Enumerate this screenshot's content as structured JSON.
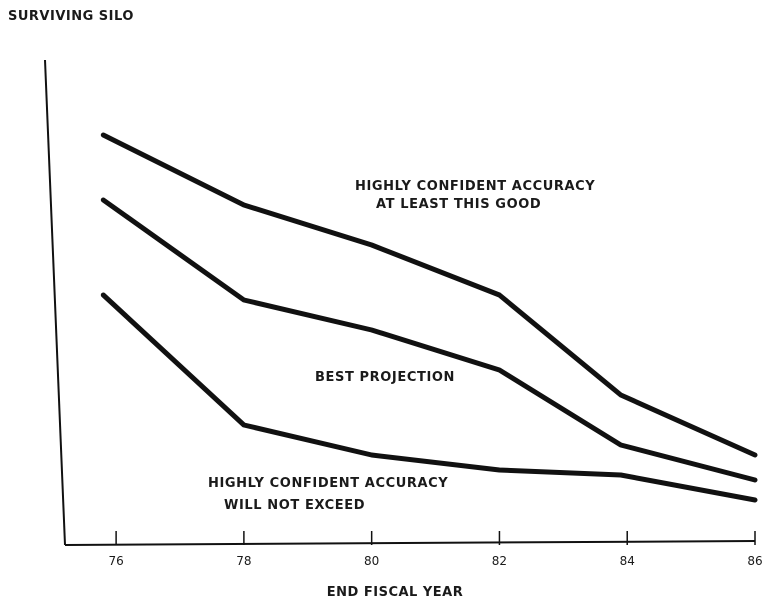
{
  "chart_data": {
    "type": "line",
    "ylabel": "SURVIVING SILO",
    "xlabel": "END FISCAL YEAR",
    "x": [
      76,
      78,
      80,
      82,
      84,
      86
    ],
    "x_tick_labels": [
      "76",
      "78",
      "80",
      "82",
      "84",
      "86"
    ],
    "xlim": [
      75.2,
      86
    ],
    "ylim": [
      0,
      100
    ],
    "grid": false,
    "series": [
      {
        "name": "HIGHLY CONFIDENT ACCURACY AT LEAST THIS GOOD",
        "x": [
          75.8,
          78,
          80,
          82,
          83.9,
          86
        ],
        "values": [
          82,
          68,
          60,
          50,
          30,
          18
        ]
      },
      {
        "name": "BEST PROJECTION",
        "x": [
          75.8,
          78,
          80,
          82,
          83.9,
          86
        ],
        "values": [
          69,
          49,
          43,
          35,
          20,
          13
        ]
      },
      {
        "name": "HIGHLY CONFIDENT ACCURACY WILL NOT EXCEED",
        "x": [
          75.8,
          78,
          80,
          82,
          83.9,
          86
        ],
        "values": [
          50,
          24,
          18,
          15,
          14,
          9
        ]
      }
    ],
    "annotations": [
      {
        "lines": [
          "HIGHLY CONFIDENT ACCURACY",
          "AT LEAST THIS GOOD"
        ]
      },
      {
        "lines": [
          "BEST PROJECTION"
        ]
      },
      {
        "lines": [
          "HIGHLY CONFIDENT ACCURACY",
          "WILL NOT EXCEED"
        ]
      }
    ]
  }
}
